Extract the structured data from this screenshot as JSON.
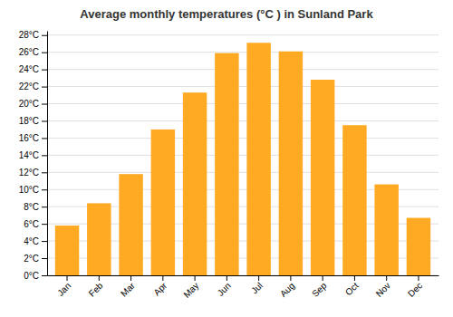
{
  "chart_data": {
    "type": "bar",
    "title": "Average monthly temperatures (°C ) in Sunland Park",
    "categories": [
      "Jan",
      "Feb",
      "Mar",
      "Apr",
      "May",
      "Jun",
      "Jul",
      "Aug",
      "Sep",
      "Oct",
      "Nov",
      "Dec"
    ],
    "values": [
      5.8,
      8.4,
      11.8,
      17.0,
      21.3,
      25.9,
      27.1,
      26.1,
      22.8,
      17.5,
      10.6,
      6.7
    ],
    "color": "#FFAA22",
    "ylim": [
      0,
      28.5
    ],
    "yticks": [
      {
        "value": 0,
        "label": "0°C"
      },
      {
        "value": 2,
        "label": "2°C"
      },
      {
        "value": 4,
        "label": "4°C"
      },
      {
        "value": 6,
        "label": "6°C"
      },
      {
        "value": 8,
        "label": "8°C"
      },
      {
        "value": 10,
        "label": "10°C"
      },
      {
        "value": 12,
        "label": "12°C"
      },
      {
        "value": 14,
        "label": "14°C"
      },
      {
        "value": 16,
        "label": "16°C"
      },
      {
        "value": 18,
        "label": "18°C"
      },
      {
        "value": 20,
        "label": "20°C"
      },
      {
        "value": 22,
        "label": "22°C"
      },
      {
        "value": 24,
        "label": "24°C"
      },
      {
        "value": 26,
        "label": "26°C"
      },
      {
        "value": 28,
        "label": "28°C"
      }
    ],
    "grid": true
  }
}
